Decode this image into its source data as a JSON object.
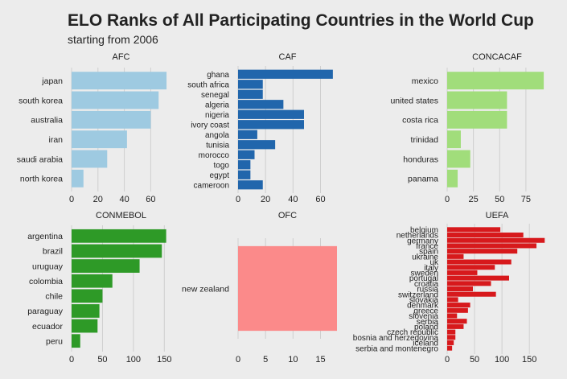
{
  "chart_data": {
    "type": "bar",
    "orientation": "horizontal",
    "title": "ELO Ranks of All Participating Countries in the World Cup",
    "subtitle": "starting from 2006",
    "grid": true,
    "panels": [
      {
        "name": "AFC",
        "color": "#9ecae1",
        "categories": [
          "japan",
          "south korea",
          "australia",
          "iran",
          "saudi arabia",
          "north korea"
        ],
        "values": [
          72,
          66,
          60,
          42,
          27,
          9
        ],
        "xlim": [
          0,
          75
        ],
        "xticks": [
          0,
          20,
          40,
          60
        ]
      },
      {
        "name": "CAF",
        "color": "#2166ac",
        "categories": [
          "ghana",
          "south africa",
          "senegal",
          "algeria",
          "nigeria",
          "ivory coast",
          "angola",
          "tunisia",
          "morocco",
          "togo",
          "egypt",
          "cameroon"
        ],
        "values": [
          69,
          18,
          18,
          33,
          48,
          48,
          14,
          27,
          12,
          9,
          9,
          18
        ],
        "xlim": [
          0,
          72
        ],
        "xticks": [
          0,
          20,
          40,
          60
        ]
      },
      {
        "name": "CONCACAF",
        "color": "#a1dd7b",
        "categories": [
          "mexico",
          "united states",
          "costa rica",
          "trinidad",
          "honduras",
          "panama"
        ],
        "values": [
          92,
          57,
          57,
          13,
          22,
          10
        ],
        "xlim": [
          0,
          95
        ],
        "xticks": [
          0,
          25,
          50,
          75
        ]
      },
      {
        "name": "CONMEBOL",
        "color": "#2e9a27",
        "categories": [
          "argentina",
          "brazil",
          "uruguay",
          "colombia",
          "chile",
          "paraguay",
          "ecuador",
          "peru"
        ],
        "values": [
          153,
          146,
          110,
          66,
          50,
          45,
          42,
          14
        ],
        "xlim": [
          0,
          160
        ],
        "xticks": [
          0,
          50,
          100,
          150
        ]
      },
      {
        "name": "OFC",
        "color": "#fb8a8a",
        "categories": [
          "new zealand"
        ],
        "values": [
          18
        ],
        "xlim": [
          0,
          18
        ],
        "xticks": [
          0,
          5,
          10,
          15
        ]
      },
      {
        "name": "UEFA",
        "color": "#d7191c",
        "categories": [
          "belgium",
          "netherlands",
          "germany",
          "france",
          "spain",
          "ukraine",
          "uk",
          "italy",
          "sweden",
          "portugal",
          "croatia",
          "russia",
          "switzerland",
          "slovakia",
          "denmark",
          "greece",
          "slovenia",
          "serbia",
          "poland",
          "czech republic",
          "bosnia and herzegovina",
          "iceland",
          "serbia and montenegro"
        ],
        "values": [
          97,
          139,
          178,
          163,
          128,
          30,
          117,
          87,
          55,
          113,
          80,
          47,
          89,
          20,
          42,
          38,
          18,
          36,
          30,
          15,
          15,
          12,
          9
        ],
        "xlim": [
          0,
          182
        ],
        "xticks": [
          0,
          50,
          100,
          150
        ]
      }
    ]
  }
}
